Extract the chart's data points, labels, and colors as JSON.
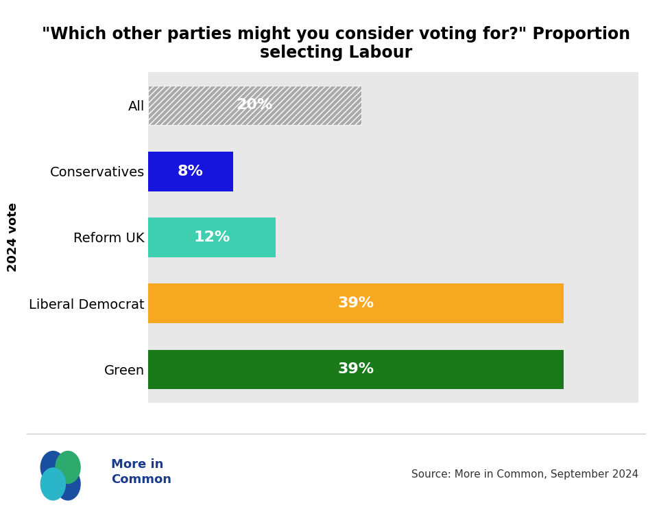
{
  "title": "\"Which other parties might you consider voting for?\" Proportion\nselecting Labour",
  "categories": [
    "All",
    "Conservatives",
    "Reform UK",
    "Liberal Democrat",
    "Green"
  ],
  "values": [
    20,
    8,
    12,
    39,
    39
  ],
  "bar_colors": [
    "#aaaaaa",
    "#1515dd",
    "#3ecfb0",
    "#f5a820",
    "#1a7a1a"
  ],
  "hatch_flags": [
    true,
    false,
    false,
    false,
    false
  ],
  "labels": [
    "20%",
    "8%",
    "12%",
    "39%",
    "39%"
  ],
  "ylabel": "2024 vote",
  "xlim": [
    0,
    46
  ],
  "background_color": "#ffffff",
  "plot_bg_color": "#e8e8e8",
  "title_fontsize": 17,
  "label_fontsize": 16,
  "tick_fontsize": 14,
  "ylabel_fontsize": 13,
  "source_text": "Source: More in Common, September 2024",
  "logo_text": "More in\nCommon",
  "bar_height": 0.6
}
